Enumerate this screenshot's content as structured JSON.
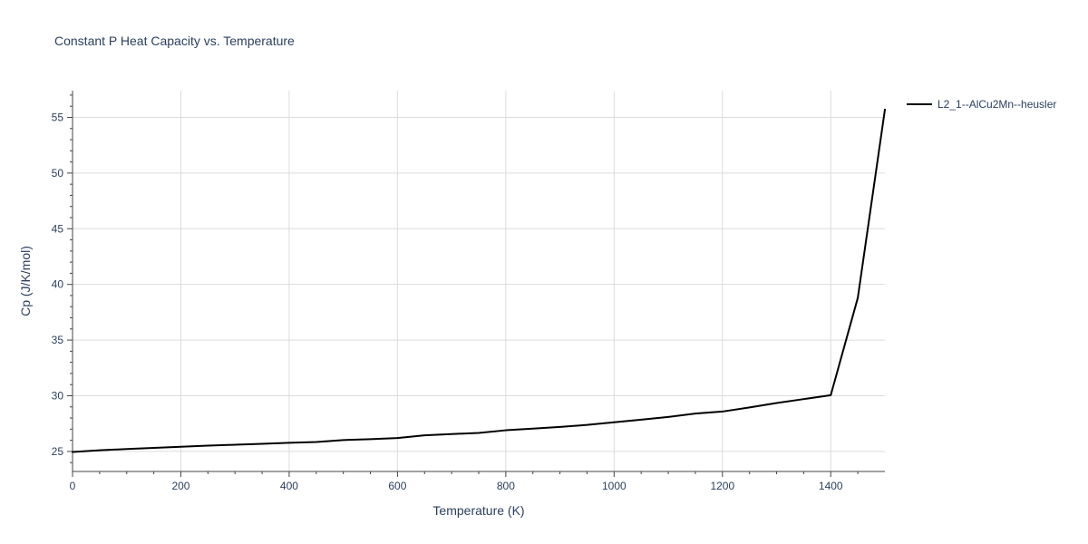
{
  "chart_data": {
    "type": "line",
    "title": "Constant P Heat Capacity vs. Temperature",
    "xlabel": "Temperature (K)",
    "ylabel": "Cp (J/K/mol)",
    "xlim": [
      0,
      1500
    ],
    "ylim": [
      23.2,
      57.4
    ],
    "x_ticks": [
      0,
      200,
      400,
      600,
      800,
      1000,
      1200,
      1400
    ],
    "y_ticks": [
      25,
      30,
      35,
      40,
      45,
      50,
      55
    ],
    "x_tick_labels": [
      "0",
      "200",
      "400",
      "600",
      "800",
      "1000",
      "1200",
      "1400"
    ],
    "y_tick_labels": [
      "25",
      "30",
      "35",
      "40",
      "45",
      "50",
      "55"
    ],
    "grid": true,
    "legend_position": "top-right",
    "series": [
      {
        "name": "L2_1--AlCu2Mn--heusler",
        "color": "#000000",
        "x": [
          0,
          50,
          100,
          150,
          200,
          250,
          300,
          350,
          400,
          450,
          500,
          550,
          600,
          650,
          700,
          750,
          800,
          850,
          900,
          950,
          1000,
          1050,
          1100,
          1150,
          1200,
          1250,
          1300,
          1350,
          1400,
          1450,
          1500
        ],
        "y": [
          24.95,
          25.1,
          25.22,
          25.32,
          25.42,
          25.52,
          25.6,
          25.68,
          25.78,
          25.85,
          26.02,
          26.1,
          26.2,
          26.45,
          26.56,
          26.66,
          26.9,
          27.05,
          27.2,
          27.38,
          27.62,
          27.85,
          28.1,
          28.4,
          28.58,
          28.95,
          29.35,
          29.7,
          30.05,
          38.8,
          55.7
        ]
      }
    ]
  }
}
